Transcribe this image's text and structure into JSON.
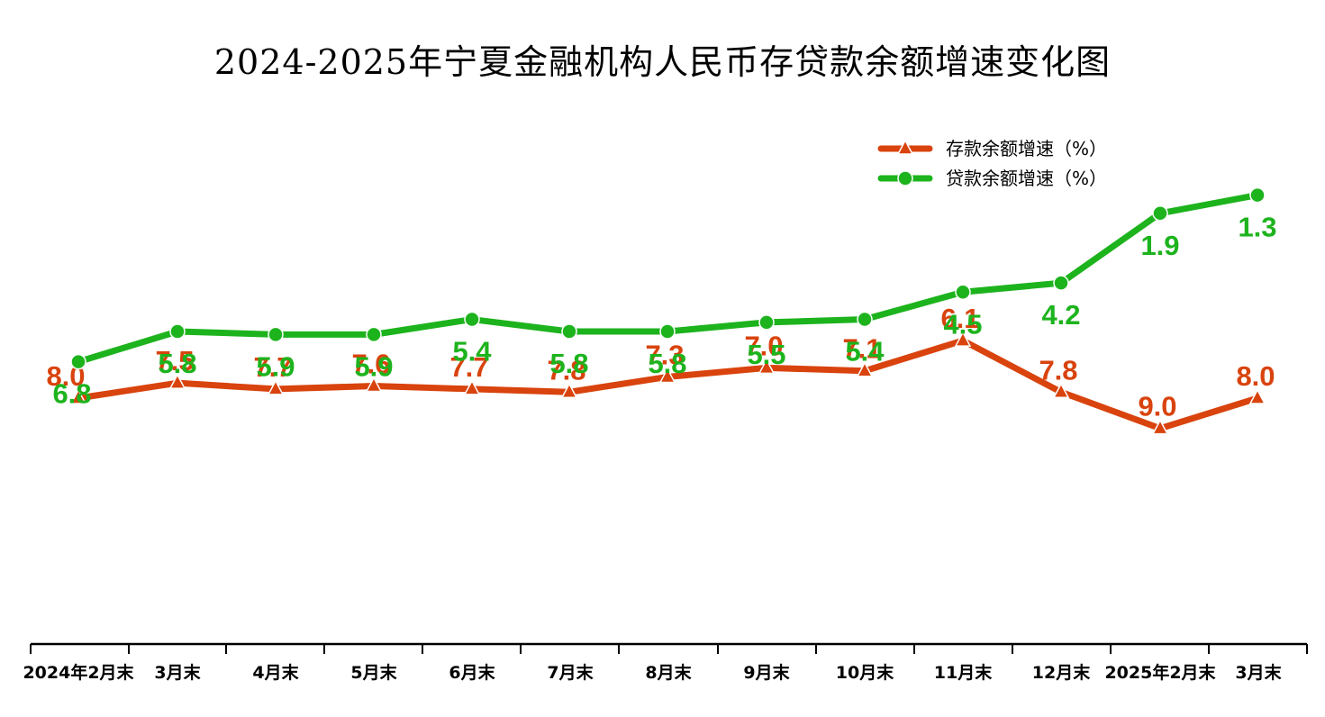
{
  "chart_data": {
    "type": "line",
    "title": "2024-2025年宁夏金融机构人民币存贷款余额增速变化图",
    "categories": [
      "2024年2月末",
      "3月末",
      "4月末",
      "5月末",
      "6月末",
      "7月末",
      "8月末",
      "9月末",
      "10月末",
      "11月末",
      "12月末",
      "2025年2月末",
      "3月末"
    ],
    "series": [
      {
        "name": "存款余额增速（%）",
        "color": "#d9430d",
        "marker": "triangle",
        "values": [
          8.0,
          7.5,
          7.7,
          7.6,
          7.7,
          7.8,
          7.3,
          7.0,
          7.1,
          6.1,
          7.8,
          9.0,
          8.0
        ]
      },
      {
        "name": "贷款余额增速（%）",
        "color": "#1db31d",
        "marker": "circle",
        "values": [
          6.8,
          5.8,
          5.9,
          5.9,
          5.4,
          5.8,
          5.8,
          5.5,
          5.4,
          4.5,
          4.2,
          1.9,
          1.3
        ]
      }
    ],
    "legend_position": "top-right",
    "grid": false,
    "xlabel": "",
    "ylabel": ""
  }
}
